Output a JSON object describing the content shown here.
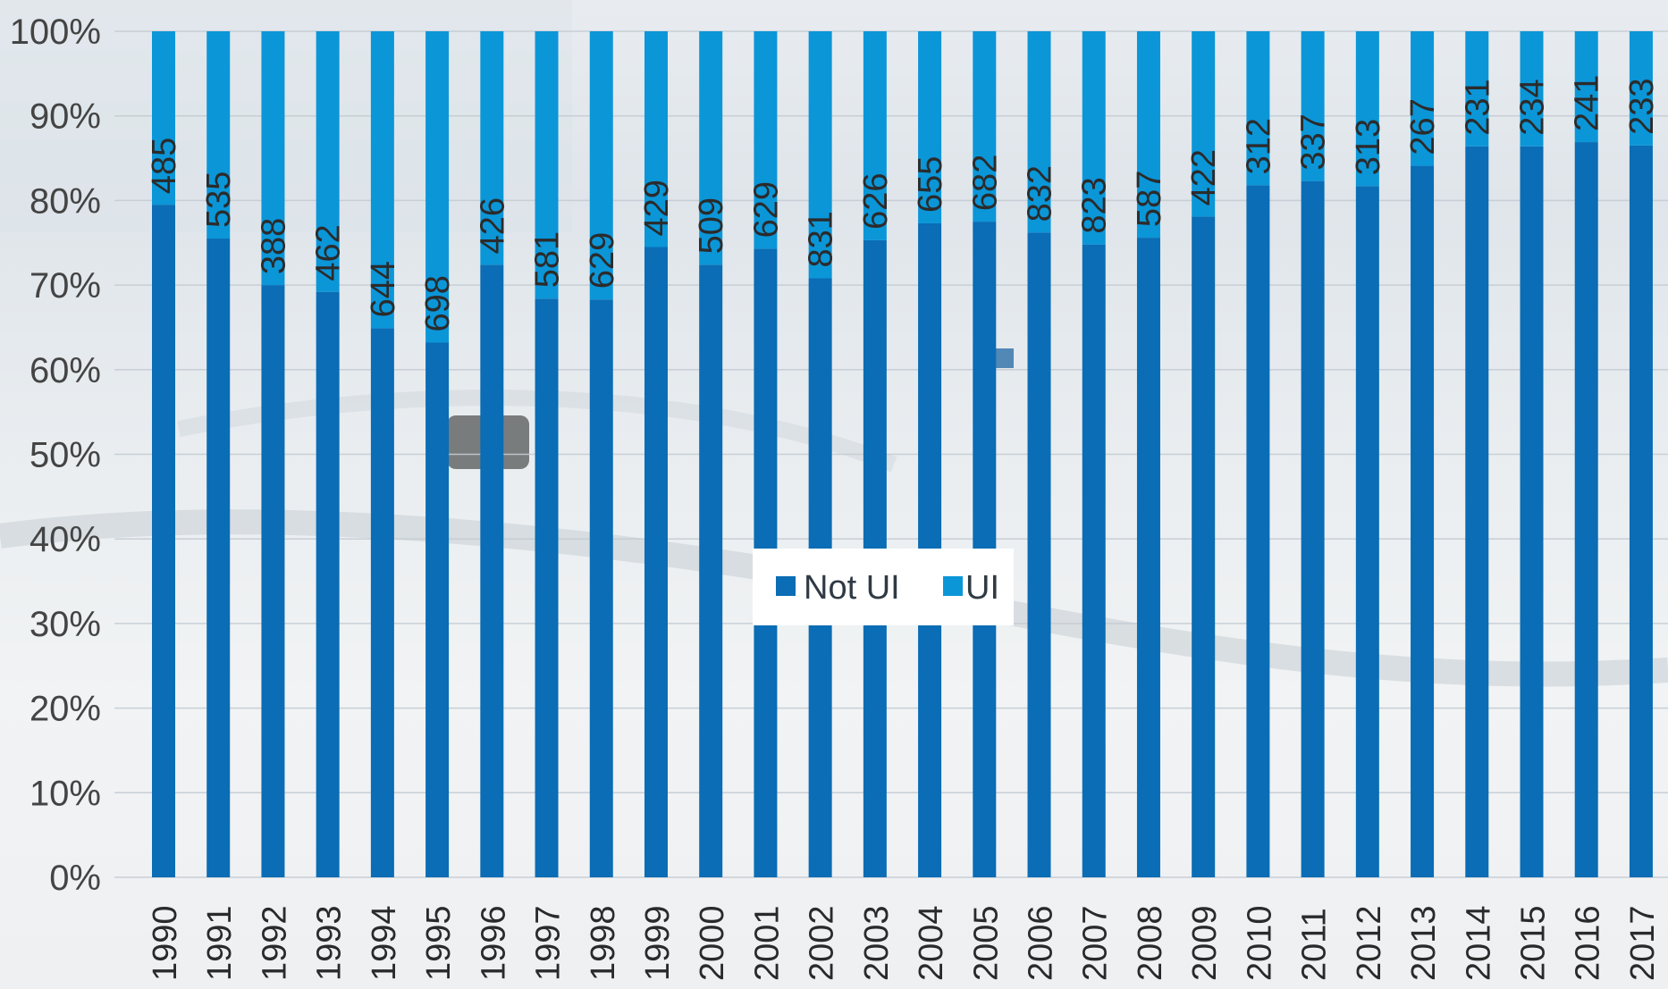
{
  "chart_data": {
    "type": "bar",
    "stacked": true,
    "normalized_percent": true,
    "categories": [
      "1990",
      "1991",
      "1992",
      "1993",
      "1994",
      "1995",
      "1996",
      "1997",
      "1998",
      "1999",
      "2000",
      "2001",
      "2002",
      "2003",
      "2004",
      "2005",
      "2006",
      "2007",
      "2008",
      "2009",
      "2010",
      "2011",
      "2012",
      "2013",
      "2014",
      "2015",
      "2016",
      "2017"
    ],
    "series": [
      {
        "name": "Not UI",
        "color": "#0a6db5",
        "percent_values": [
          79.5,
          75.5,
          70.0,
          69.2,
          64.9,
          63.2,
          72.4,
          68.4,
          68.3,
          74.5,
          72.4,
          74.3,
          70.8,
          75.3,
          77.3,
          77.5,
          76.2,
          74.8,
          75.6,
          78.1,
          81.8,
          82.3,
          81.7,
          84.1,
          86.4,
          86.4,
          86.9,
          86.5
        ]
      },
      {
        "name": "UI",
        "color": "#0b96d8",
        "percent_values": [
          20.5,
          24.5,
          30.0,
          30.8,
          35.1,
          36.8,
          27.6,
          31.6,
          31.7,
          25.5,
          27.6,
          25.7,
          29.2,
          24.7,
          22.7,
          22.5,
          23.8,
          25.2,
          24.4,
          21.9,
          18.2,
          17.7,
          18.3,
          15.9,
          13.6,
          13.6,
          13.1,
          13.5
        ],
        "data_labels": [
          "485",
          "535",
          "388",
          "462",
          "644",
          "698",
          "426",
          "581",
          "629",
          "429",
          "509",
          "629",
          "831",
          "626",
          "655",
          "682",
          "832",
          "823",
          "587",
          "422",
          "312",
          "337",
          "313",
          "267",
          "231",
          "234",
          "241",
          "233"
        ]
      }
    ],
    "y_ticks": [
      "0%",
      "10%",
      "20%",
      "30%",
      "40%",
      "50%",
      "60%",
      "70%",
      "80%",
      "90%",
      "100%"
    ],
    "ylim": [
      0,
      100
    ],
    "grid": true,
    "legend": {
      "position": "center",
      "items": [
        "Not UI",
        "UI"
      ]
    }
  }
}
